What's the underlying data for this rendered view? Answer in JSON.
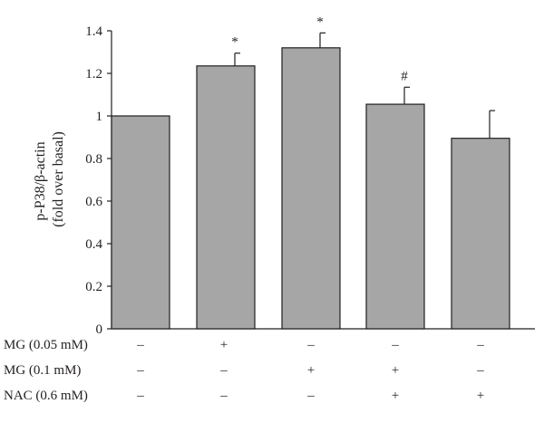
{
  "chart_data": {
    "type": "bar",
    "ylabel_line1": "p-P38/β-actin",
    "ylabel_line2": "(fold over basal)",
    "xlabel": "",
    "ylim": [
      0,
      1.4
    ],
    "yticks": [
      0,
      0.2,
      0.4,
      0.6,
      0.8,
      1,
      1.2,
      1.4
    ],
    "ytick_labels": [
      "0",
      "0.2",
      "0.4",
      "0.6",
      "0.8",
      "1",
      "1.2",
      "1.4"
    ],
    "bar_color": "#a6a6a6",
    "values": [
      1.0,
      1.235,
      1.32,
      1.055,
      0.895
    ],
    "errors": [
      0.0,
      0.06,
      0.07,
      0.08,
      0.13
    ],
    "annotations": [
      "",
      "*",
      "*",
      "#",
      ""
    ],
    "treatment_rows": [
      {
        "label": "MG (0.05 mM)",
        "marks": [
          "–",
          "+",
          "–",
          "–",
          "–"
        ]
      },
      {
        "label": "MG (0.1 mM)",
        "marks": [
          "–",
          "–",
          "+",
          "+",
          "–"
        ]
      },
      {
        "label": "NAC (0.6 mM)",
        "marks": [
          "–",
          "–",
          "–",
          "+",
          "+"
        ]
      }
    ]
  }
}
